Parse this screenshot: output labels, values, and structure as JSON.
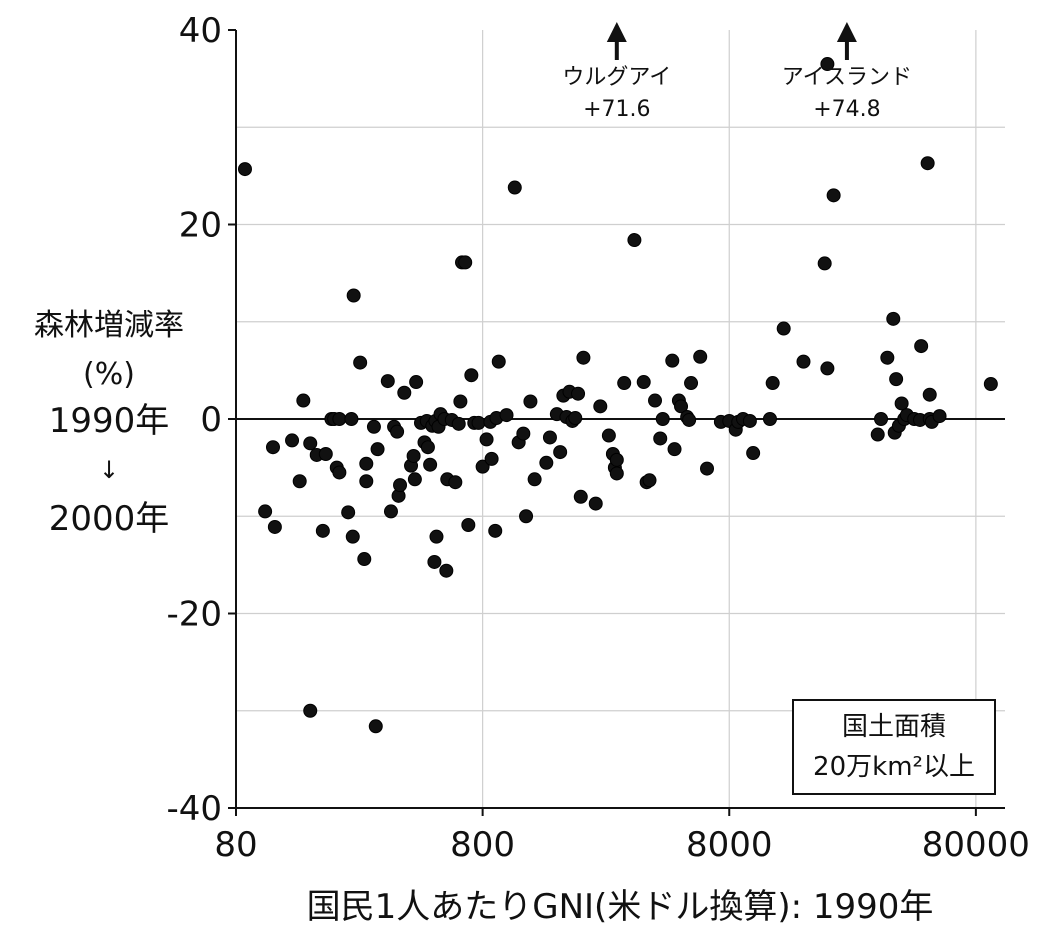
{
  "chart_data": {
    "type": "scatter",
    "xscale": "log",
    "xlim": [
      80,
      105000
    ],
    "ylim": [
      -40,
      40
    ],
    "grid": true,
    "xlabel": "国民1人あたりGNI(米ドル換算): 1990年",
    "ylabel_lines": [
      "森林増減率",
      "(%)",
      "1990年",
      "↓",
      "2000年"
    ],
    "x_ticks": [
      80,
      800,
      8000,
      80000
    ],
    "x_tick_labels": [
      "80",
      "800",
      "8000",
      "80000"
    ],
    "y_ticks": [
      40,
      20,
      0,
      -20,
      -40
    ],
    "y_tick_labels": [
      "40",
      "20",
      "0",
      "-20",
      "-40"
    ],
    "legend_lines": [
      "国土面積",
      "20万km²以上"
    ],
    "annotations": [
      {
        "name": "uruguay",
        "x": 2800,
        "lines": [
          "ウルグアイ",
          "+71.6"
        ]
      },
      {
        "name": "iceland",
        "x": 24000,
        "lines": [
          "アイスランド",
          "+74.8"
        ]
      }
    ],
    "points": [
      [
        87,
        25.7
      ],
      [
        105,
        -9.5
      ],
      [
        113,
        -2.9
      ],
      [
        115,
        -11.1
      ],
      [
        135,
        -2.2
      ],
      [
        145,
        -6.4
      ],
      [
        150,
        1.9
      ],
      [
        160,
        -30
      ],
      [
        160,
        -2.5
      ],
      [
        170,
        -3.7
      ],
      [
        180,
        -11.5
      ],
      [
        185,
        -3.6
      ],
      [
        195,
        0
      ],
      [
        200,
        0
      ],
      [
        205,
        -5
      ],
      [
        210,
        -5.5
      ],
      [
        210,
        0
      ],
      [
        228,
        -9.6
      ],
      [
        235,
        0
      ],
      [
        238,
        -12.1
      ],
      [
        240,
        12.7
      ],
      [
        255,
        5.8
      ],
      [
        265,
        -14.4
      ],
      [
        270,
        -6.4
      ],
      [
        270,
        -4.6
      ],
      [
        290,
        -0.8
      ],
      [
        295,
        -31.6
      ],
      [
        300,
        -3.1
      ],
      [
        330,
        3.9
      ],
      [
        340,
        -9.5
      ],
      [
        350,
        -0.8
      ],
      [
        360,
        -1.3
      ],
      [
        365,
        -7.9
      ],
      [
        370,
        -6.8
      ],
      [
        385,
        2.7
      ],
      [
        410,
        -4.8
      ],
      [
        420,
        -3.8
      ],
      [
        425,
        -6.2
      ],
      [
        430,
        3.8
      ],
      [
        450,
        -0.4
      ],
      [
        465,
        -2.4
      ],
      [
        475,
        -0.2
      ],
      [
        480,
        -2.9
      ],
      [
        490,
        -4.7
      ],
      [
        500,
        -0.7
      ],
      [
        510,
        -14.7
      ],
      [
        515,
        -0.2
      ],
      [
        520,
        -12.1
      ],
      [
        530,
        -0.8
      ],
      [
        540,
        0.5
      ],
      [
        560,
        0
      ],
      [
        570,
        -15.6
      ],
      [
        575,
        -6.2
      ],
      [
        600,
        -0.1
      ],
      [
        620,
        -6.5
      ],
      [
        640,
        -0.5
      ],
      [
        650,
        1.8
      ],
      [
        660,
        16.1
      ],
      [
        680,
        16.1
      ],
      [
        700,
        -10.9
      ],
      [
        720,
        4.5
      ],
      [
        740,
        -0.4
      ],
      [
        770,
        -0.4
      ],
      [
        800,
        -4.9
      ],
      [
        830,
        -2.1
      ],
      [
        860,
        -0.3
      ],
      [
        870,
        -4.1
      ],
      [
        900,
        -11.5
      ],
      [
        910,
        0.1
      ],
      [
        930,
        5.9
      ],
      [
        1000,
        0.4
      ],
      [
        1080,
        23.8
      ],
      [
        1120,
        -2.4
      ],
      [
        1170,
        -1.5
      ],
      [
        1200,
        -10
      ],
      [
        1250,
        1.8
      ],
      [
        1300,
        -6.2
      ],
      [
        1450,
        -4.5
      ],
      [
        1500,
        -1.9
      ],
      [
        1600,
        0.5
      ],
      [
        1650,
        -3.4
      ],
      [
        1700,
        2.4
      ],
      [
        1750,
        0.2
      ],
      [
        1800,
        2.8
      ],
      [
        1850,
        -0.2
      ],
      [
        1900,
        0.1
      ],
      [
        1950,
        2.6
      ],
      [
        2000,
        -8
      ],
      [
        2050,
        6.3
      ],
      [
        2300,
        -8.7
      ],
      [
        2400,
        1.3
      ],
      [
        2600,
        -1.7
      ],
      [
        2700,
        -3.6
      ],
      [
        2750,
        -5
      ],
      [
        2800,
        -4.2
      ],
      [
        2800,
        -5.6
      ],
      [
        3000,
        3.7
      ],
      [
        3300,
        18.4
      ],
      [
        3600,
        3.8
      ],
      [
        3700,
        -6.5
      ],
      [
        3800,
        -6.3
      ],
      [
        4000,
        1.9
      ],
      [
        4200,
        -2
      ],
      [
        4300,
        0
      ],
      [
        4700,
        6
      ],
      [
        4800,
        -3.1
      ],
      [
        5000,
        1.9
      ],
      [
        5100,
        1.3
      ],
      [
        5400,
        0.2
      ],
      [
        5600,
        3.7
      ],
      [
        5500,
        -0.1
      ],
      [
        6100,
        6.4
      ],
      [
        6500,
        -5.1
      ],
      [
        7400,
        -0.3
      ],
      [
        8000,
        -0.2
      ],
      [
        8500,
        -1.1
      ],
      [
        8700,
        -0.3
      ],
      [
        9100,
        0
      ],
      [
        9700,
        -0.2
      ],
      [
        10000,
        -3.5
      ],
      [
        11700,
        0
      ],
      [
        12000,
        3.7
      ],
      [
        13300,
        9.3
      ],
      [
        16000,
        5.9
      ],
      [
        19500,
        16
      ],
      [
        20000,
        36.5
      ],
      [
        20000,
        5.2
      ],
      [
        21200,
        23
      ],
      [
        32000,
        -1.6
      ],
      [
        33000,
        0
      ],
      [
        35000,
        6.3
      ],
      [
        37000,
        10.3
      ],
      [
        37500,
        -1.4
      ],
      [
        38000,
        4.1
      ],
      [
        39000,
        -0.7
      ],
      [
        40000,
        1.6
      ],
      [
        41000,
        0
      ],
      [
        42000,
        0.4
      ],
      [
        45000,
        0
      ],
      [
        47500,
        -0.1
      ],
      [
        48000,
        7.5
      ],
      [
        51000,
        26.3
      ],
      [
        52000,
        0
      ],
      [
        52000,
        2.5
      ],
      [
        53000,
        -0.3
      ],
      [
        57000,
        0.3
      ],
      [
        92000,
        3.6
      ]
    ]
  }
}
